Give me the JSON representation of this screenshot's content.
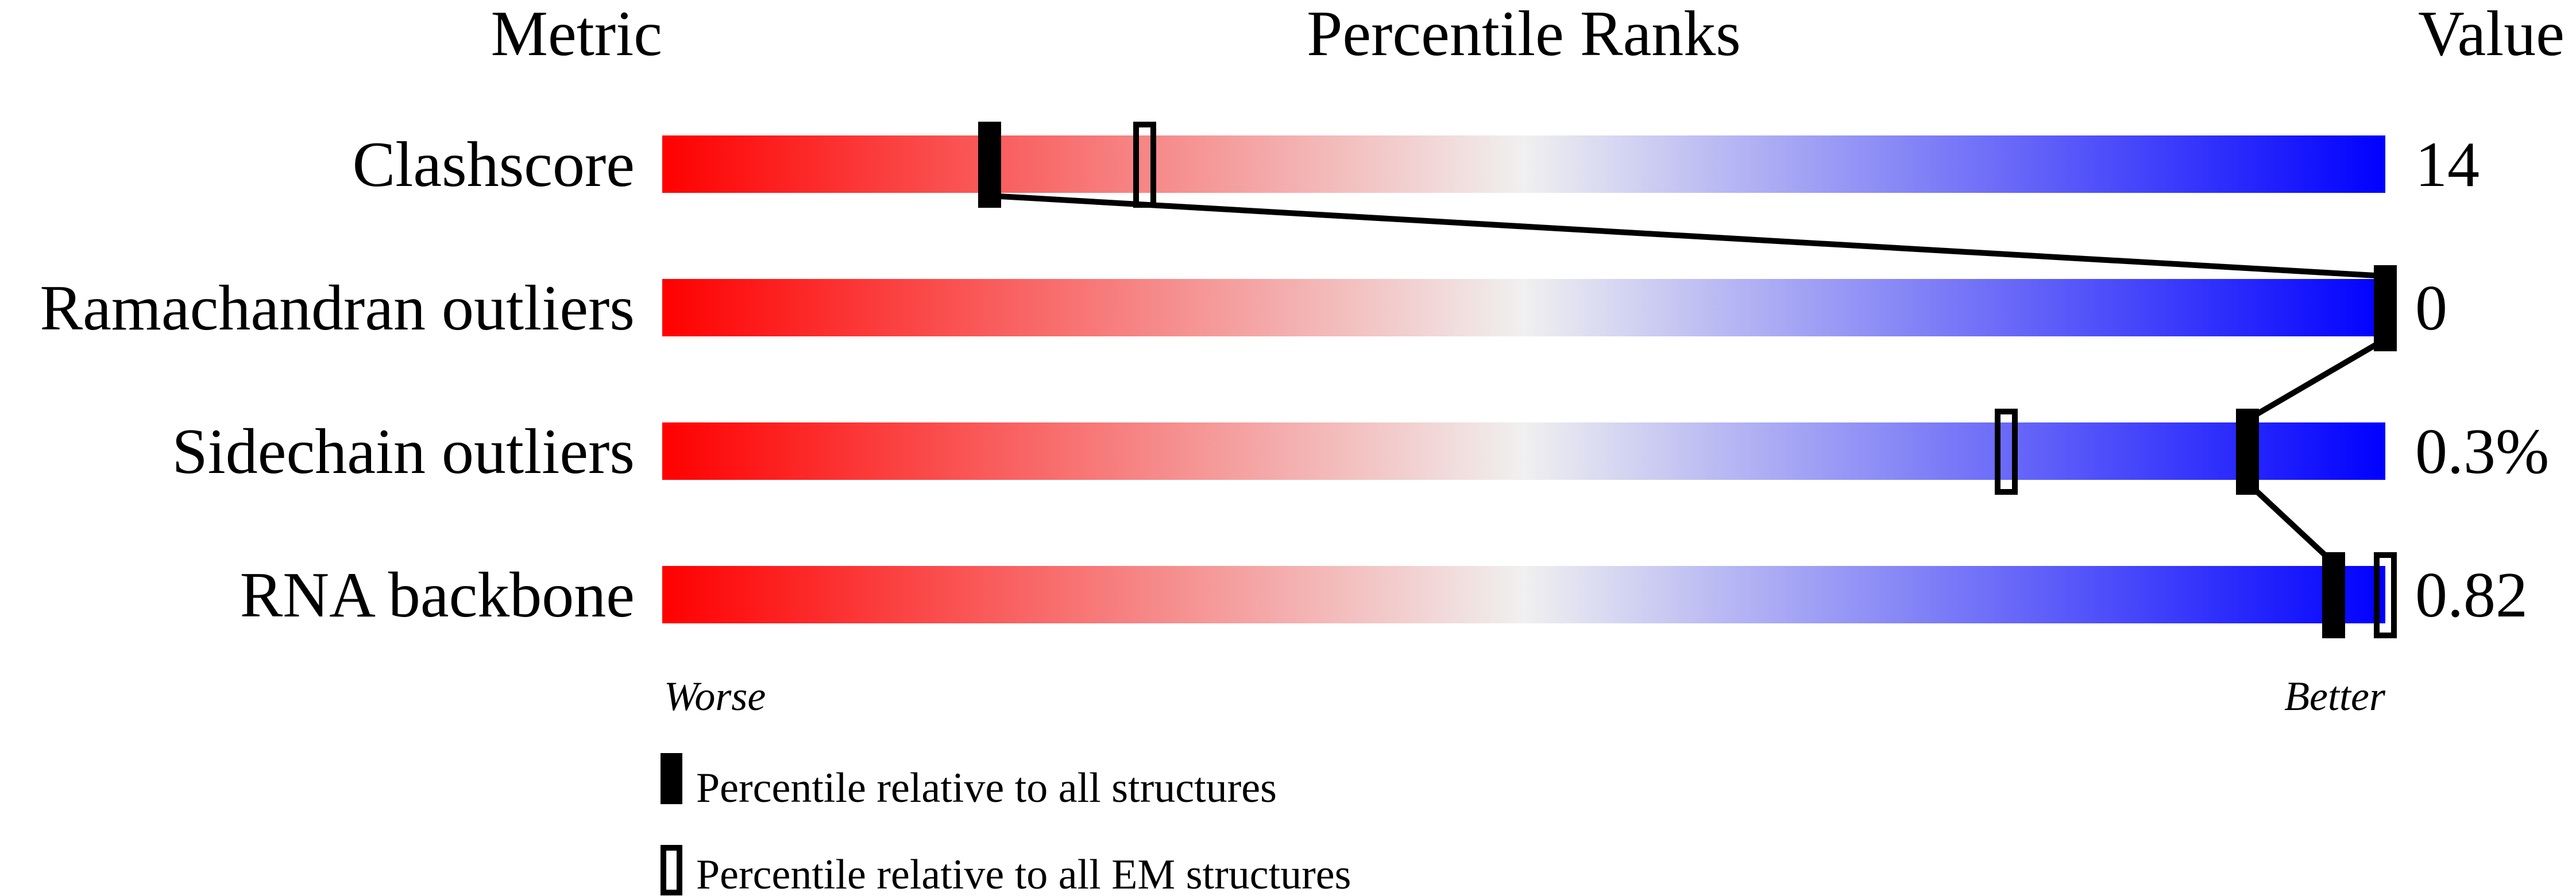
{
  "chart_data": {
    "type": "bar",
    "headers": {
      "metric": "Metric",
      "percentile": "Percentile Ranks",
      "value": "Value"
    },
    "xlim": [
      0,
      100
    ],
    "axis_labels": {
      "left": "Worse",
      "right": "Better"
    },
    "gradient_colors": {
      "worse": "#ff0000",
      "middle": "#f0f0f0",
      "better": "#0000ff"
    },
    "rows": [
      {
        "metric": "Clashscore",
        "value": "14",
        "percentile_all": 19,
        "percentile_em": 28
      },
      {
        "metric": "Ramachandran outliers",
        "value": "0",
        "percentile_all": 100,
        "percentile_em": null
      },
      {
        "metric": "Sidechain outliers",
        "value": "0.3%",
        "percentile_all": 92,
        "percentile_em": 78
      },
      {
        "metric": "RNA backbone",
        "value": "0.82",
        "percentile_all": 97,
        "percentile_em": 100
      }
    ],
    "legend": [
      {
        "marker": "filled",
        "label": "Percentile relative to all structures"
      },
      {
        "marker": "hollow",
        "label": "Percentile relative to all EM structures"
      }
    ]
  }
}
